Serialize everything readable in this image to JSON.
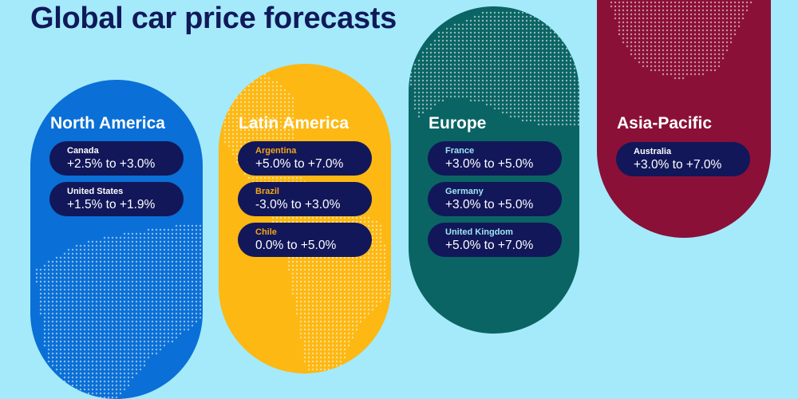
{
  "title": "Global car price forecasts",
  "colors": {
    "background": "#a4eafb",
    "card": "#12175a",
    "title": "#10195a"
  },
  "regions": [
    {
      "name": "North America",
      "color": "#0a6fd6",
      "label_color": "#ffffff",
      "icon": "north-america-map-icon",
      "countries": [
        {
          "name": "Canada",
          "range": "+2.5% to +3.0%"
        },
        {
          "name": "United States",
          "range": "+1.5% to +1.9%"
        }
      ]
    },
    {
      "name": "Latin America",
      "color": "#fdb813",
      "label_color": "#f2a51a",
      "icon": "south-america-map-icon",
      "countries": [
        {
          "name": "Argentina",
          "range": "+5.0% to +7.0%"
        },
        {
          "name": "Brazil",
          "range": "-3.0% to +3.0%"
        },
        {
          "name": "Chile",
          "range": "0.0% to +5.0%"
        }
      ]
    },
    {
      "name": "Europe",
      "color": "#0a6463",
      "label_color": "#9ee6f0",
      "icon": "europe-map-icon",
      "countries": [
        {
          "name": "France",
          "range": "+3.0% to +5.0%"
        },
        {
          "name": "Germany",
          "range": "+3.0% to +5.0%"
        },
        {
          "name": "United Kingdom",
          "range": "+5.0% to +7.0%"
        }
      ]
    },
    {
      "name": "Asia-Pacific",
      "color": "#8a1038",
      "label_color": "#ffffff",
      "icon": "australia-map-icon",
      "countries": [
        {
          "name": "Australia",
          "range": "+3.0% to +7.0%"
        }
      ]
    }
  ]
}
